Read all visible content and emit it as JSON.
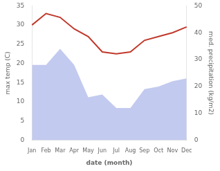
{
  "chart_data": {
    "type": "line",
    "xlabel": "date (month)",
    "ylabel": "max temp (C)",
    "y2label": "med. precipitation (kg/m2)",
    "categories": [
      "Jan",
      "Feb",
      "Mar",
      "Apr",
      "May",
      "Jun",
      "Jul",
      "Aug",
      "Sep",
      "Oct",
      "Nov",
      "Dec"
    ],
    "series": [
      {
        "type": "area",
        "color": "#aab4e8",
        "axis": "y2",
        "values": [
          28,
          28,
          34,
          28,
          16,
          17,
          12,
          12,
          19,
          20,
          22,
          23
        ]
      },
      {
        "type": "line",
        "color": "#c0392b",
        "values": [
          30,
          33,
          32,
          29,
          27,
          23,
          22.5,
          23,
          26,
          27,
          28,
          29.5
        ]
      }
    ],
    "ylim": [
      0,
      35
    ],
    "yticks": [
      0,
      5,
      10,
      15,
      20,
      25,
      30,
      35
    ],
    "y2lim": [
      0,
      50
    ],
    "y2ticks": [
      0,
      10,
      20,
      30,
      40,
      50
    ],
    "grid": false
  }
}
